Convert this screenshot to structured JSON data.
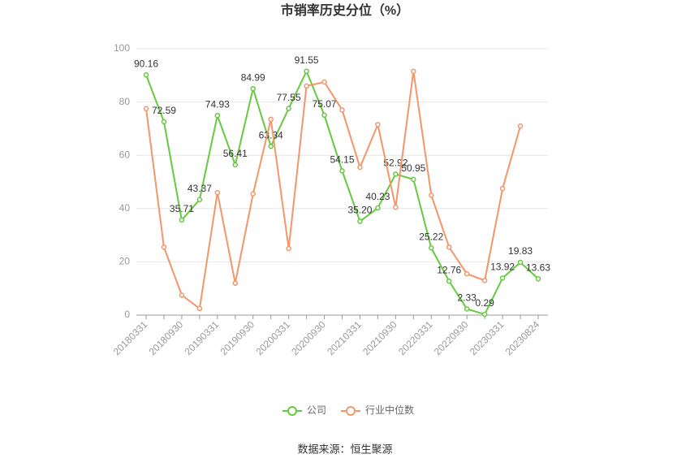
{
  "chart_data": {
    "type": "line",
    "title": "市销率历史分位（%）",
    "categories": [
      "20180331",
      null,
      "20180930",
      null,
      "20190331",
      null,
      "20190930",
      null,
      "20200331",
      null,
      "20200930",
      null,
      "20210331",
      null,
      "20210930",
      null,
      "20220331",
      null,
      "20220930",
      null,
      "20230331",
      null,
      "20230824"
    ],
    "series": [
      {
        "name": "公司",
        "color": "#66c93f",
        "values": [
          90.16,
          72.59,
          35.71,
          43.37,
          74.93,
          56.41,
          84.99,
          63.34,
          77.55,
          91.55,
          75.07,
          54.15,
          35.2,
          40.23,
          52.92,
          50.95,
          25.22,
          12.76,
          2.33,
          0.29,
          13.92,
          19.83,
          13.63
        ],
        "value_labels": [
          "90.16",
          "72.59",
          "35.71",
          "43.37",
          "74.93",
          "56.41",
          "84.99",
          "63.34",
          "77.55",
          "91.55",
          "75.07",
          "54.15",
          "35.20",
          "40.23",
          "52.92",
          "50.95",
          "25.22",
          "12.76",
          "2.33",
          "0.29",
          "13.92",
          "19.83",
          "13.63"
        ]
      },
      {
        "name": "行业中位数",
        "color": "#f4956a",
        "values": [
          77.5,
          25.5,
          7.5,
          2.5,
          46,
          12,
          45.5,
          73.5,
          25,
          86,
          87.5,
          77,
          55.5,
          71.5,
          40.5,
          91.5,
          45,
          25.5,
          15.5,
          13,
          47.5,
          71,
          null
        ]
      }
    ],
    "ylim": [
      0,
      100
    ],
    "yticks": [
      0,
      20,
      40,
      60,
      80,
      100
    ],
    "grid": true,
    "legend": "bottom",
    "source": "数据来源：恒生聚源"
  }
}
